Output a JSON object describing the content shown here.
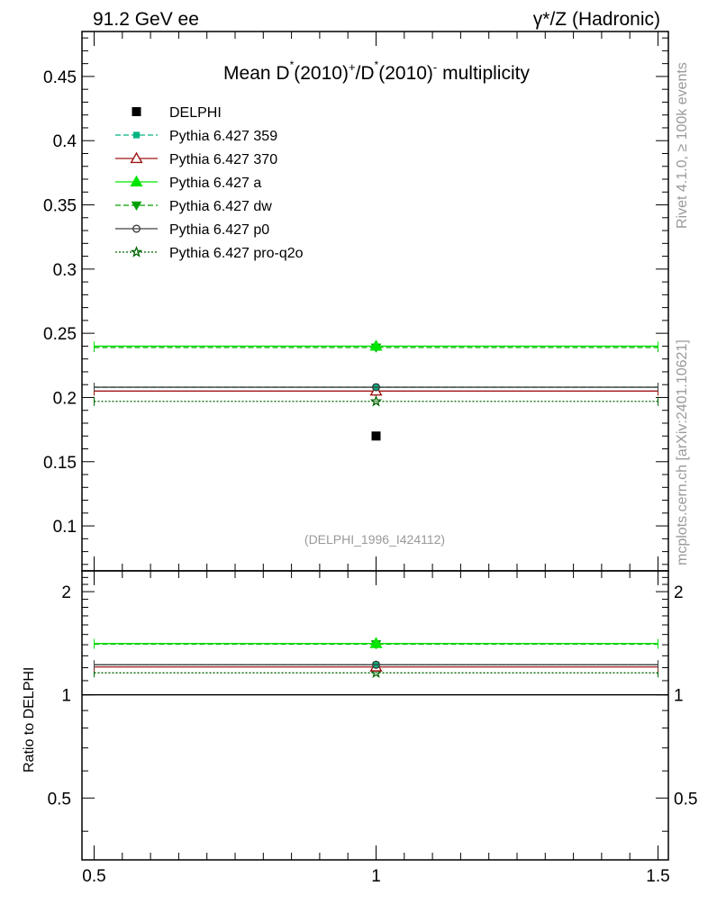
{
  "header": {
    "left": "91.2 GeV ee",
    "right": "γ*/Z (Hadronic)"
  },
  "side_labels": {
    "rivet": "Rivet 4.1.0, ≥ 100k events",
    "mcplots": "mcplots.cern.ch [arXiv:2401.10621]"
  },
  "chart_data": {
    "type": "scatter",
    "title": "Mean D*(2010)+/D*(2010)- multiplicity",
    "title_parts": {
      "mean": "Mean D",
      "star1": "*",
      "mid1": "(2010)",
      "sup_plus": "+",
      "slash_d": "/D",
      "star2": "*",
      "mid2": "(2010)",
      "sup_minus": "-",
      "tail": " multiplicity"
    },
    "analysis_label": "(DELPHI_1996_I424112)",
    "xlim": [
      0.5,
      1.5
    ],
    "x_ticks": [
      "0.5",
      "1",
      "1.5"
    ],
    "main_panel": {
      "ylim": [
        0.065,
        0.485
      ],
      "y_ticks": [
        "0.1",
        "0.15",
        "0.2",
        "0.25",
        "0.3",
        "0.35",
        "0.4",
        "0.45"
      ],
      "ylabel": ""
    },
    "ratio_panel": {
      "ylabel": "Ratio to DELPHI",
      "ylim": [
        0.33,
        2.3
      ],
      "y_ticks_left": [
        "0.5",
        "1",
        "2"
      ],
      "y_ticks_right": [
        "0.5",
        "1",
        "2"
      ]
    },
    "data": {
      "name": "DELPHI",
      "x": [
        1.0
      ],
      "y": [
        0.17
      ],
      "color": "#000000"
    },
    "series": [
      {
        "name": "Pythia 6.427 359",
        "x_range": [
          0.5,
          1.5
        ],
        "value": 0.208,
        "ratio": 1.224,
        "color": "#00b482",
        "dash": "dashed",
        "marker": "square-filled"
      },
      {
        "name": "Pythia 6.427 370",
        "x_range": [
          0.5,
          1.5
        ],
        "value": 0.205,
        "ratio": 1.206,
        "color": "#a01414",
        "dash": "solid",
        "marker": "triangle-open"
      },
      {
        "name": "Pythia 6.427 a",
        "x_range": [
          0.5,
          1.5
        ],
        "value": 0.24,
        "ratio": 1.412,
        "color": "#00e600",
        "dash": "solid",
        "marker": "triangle-filled"
      },
      {
        "name": "Pythia 6.427 dw",
        "x_range": [
          0.5,
          1.5
        ],
        "value": 0.239,
        "ratio": 1.406,
        "color": "#00a000",
        "dash": "dashed",
        "marker": "triangle-down-filled"
      },
      {
        "name": "Pythia 6.427 p0",
        "x_range": [
          0.5,
          1.5
        ],
        "value": 0.208,
        "ratio": 1.224,
        "color": "#404040",
        "dash": "solid",
        "marker": "circle-open"
      },
      {
        "name": "Pythia 6.427 pro-q2o",
        "x_range": [
          0.5,
          1.5
        ],
        "value": 0.197,
        "ratio": 1.159,
        "color": "#006400",
        "dash": "dotted",
        "marker": "star-open"
      }
    ]
  }
}
